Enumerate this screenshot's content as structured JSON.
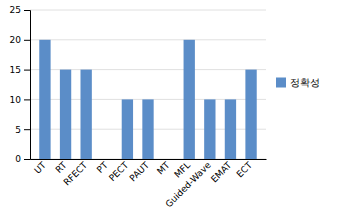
{
  "chart_data": {
    "type": "bar",
    "categories": [
      "UT",
      "RT",
      "RFECT",
      "PT",
      "PECT",
      "PAUT",
      "MT",
      "MFL",
      "Guided-Wave",
      "EMAT",
      "ECT"
    ],
    "series": [
      {
        "name": "정확성",
        "color": "#5b8dc8",
        "values": [
          20,
          15,
          15,
          0,
          10,
          10,
          0,
          20,
          10,
          10,
          15
        ]
      }
    ],
    "ylim": [
      0,
      25
    ],
    "yticks": [
      0,
      5,
      10,
      15,
      20,
      25
    ],
    "grid": true,
    "legend": "right"
  }
}
